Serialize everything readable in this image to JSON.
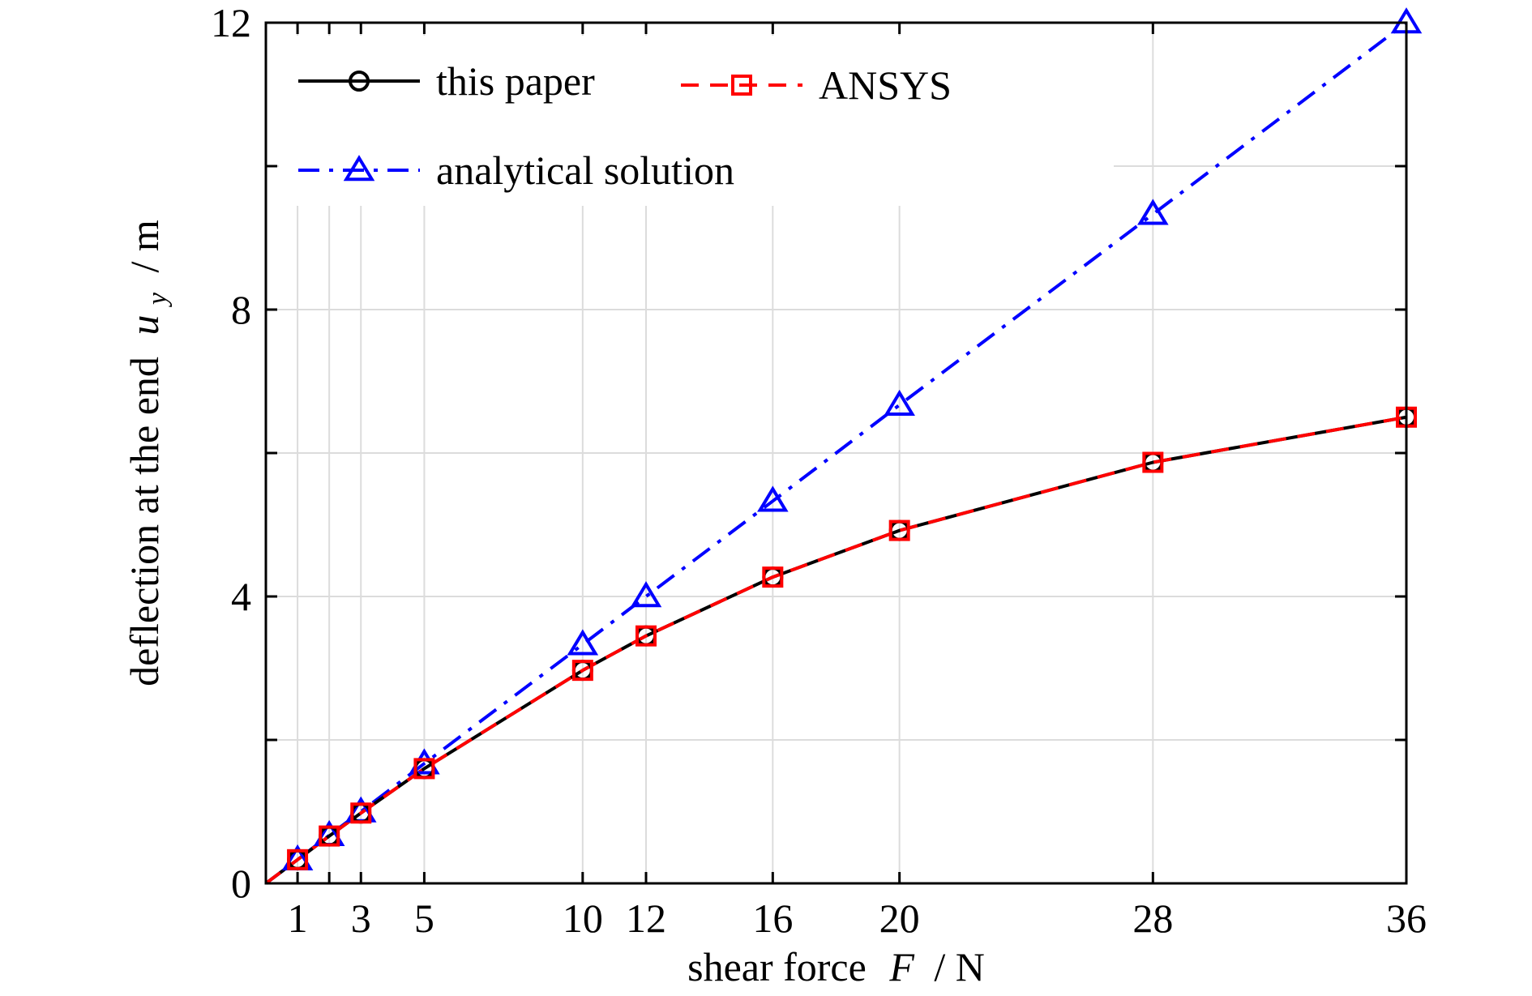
{
  "chart_data": {
    "type": "line",
    "xlabel_parts": {
      "text": "shear force",
      "var": "F",
      "unit": "/ N"
    },
    "ylabel_parts": {
      "text": "deflection at the end",
      "var": "u",
      "sub": "y",
      "unit": "/ m"
    },
    "xlim": [
      0,
      36
    ],
    "ylim": [
      0,
      12
    ],
    "x_ticks": [
      1,
      3,
      5,
      10,
      12,
      16,
      20,
      28,
      36
    ],
    "y_ticks": [
      0,
      4,
      8,
      12
    ],
    "y_minor_ticks": [
      2,
      6,
      10
    ],
    "x_minor_ticks": [
      2
    ],
    "grid": true,
    "legend_position": "top-left",
    "series": [
      {
        "name": "this paper",
        "color": "#000000",
        "line_style": "solid",
        "marker": "circle",
        "x": [
          0,
          1,
          2,
          3,
          5,
          10,
          12,
          16,
          20,
          28,
          36
        ],
        "y": [
          0,
          0.33,
          0.66,
          0.98,
          1.6,
          2.97,
          3.45,
          4.27,
          4.92,
          5.87,
          6.5
        ]
      },
      {
        "name": "ANSYS",
        "color": "#ff0000",
        "line_style": "dashed",
        "marker": "square",
        "x": [
          0,
          1,
          2,
          3,
          5,
          10,
          12,
          16,
          20,
          28,
          36
        ],
        "y": [
          0,
          0.33,
          0.66,
          0.98,
          1.6,
          2.97,
          3.45,
          4.27,
          4.92,
          5.87,
          6.5
        ]
      },
      {
        "name": "analytical solution",
        "color": "#0000ff",
        "line_style": "dashdot",
        "marker": "triangle",
        "x": [
          0,
          1,
          2,
          3,
          5,
          10,
          12,
          16,
          20,
          28,
          36
        ],
        "y": [
          0,
          0.33,
          0.67,
          1.0,
          1.67,
          3.33,
          4.0,
          5.33,
          6.67,
          9.33,
          12.0
        ]
      }
    ]
  }
}
